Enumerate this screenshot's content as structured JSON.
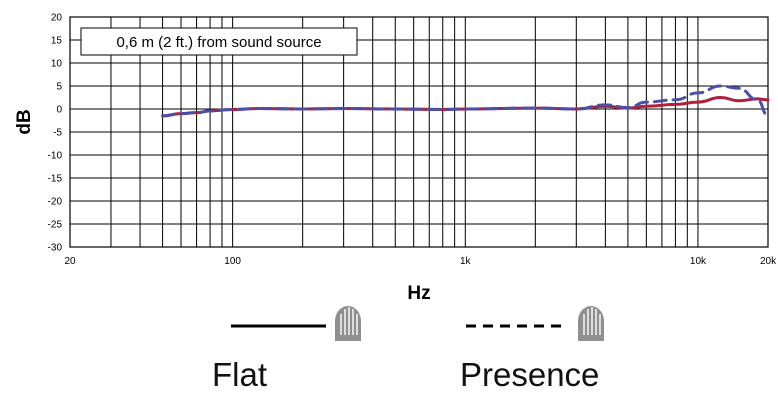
{
  "chart_data": {
    "type": "line",
    "annotation": "0,6 m (2 ft.) from sound source",
    "xlabel": "Hz",
    "ylabel": "dB",
    "xscale": "log",
    "xlim": [
      20,
      20000
    ],
    "ylim": [
      -30,
      20
    ],
    "grid": true,
    "x_tick_labels": [
      {
        "value": 20,
        "label": "20"
      },
      {
        "value": 100,
        "label": "100"
      },
      {
        "value": 1000,
        "label": "1k"
      },
      {
        "value": 10000,
        "label": "10k"
      },
      {
        "value": 20000,
        "label": "20k"
      }
    ],
    "y_ticks": [
      20,
      15,
      10,
      5,
      0,
      -5,
      -10,
      -15,
      -20,
      -25,
      -30
    ],
    "series": [
      {
        "name": "Flat",
        "style": "solid",
        "color": "#b0203a",
        "x": [
          50,
          60,
          70,
          80,
          100,
          130,
          200,
          300,
          500,
          800,
          1000,
          2000,
          3000,
          4000,
          5000,
          6000,
          8000,
          10000,
          12500,
          15000,
          18000,
          20000
        ],
        "y": [
          -1.5,
          -1.0,
          -0.8,
          -0.4,
          -0.1,
          0.1,
          0.0,
          0.1,
          0.0,
          -0.1,
          0.0,
          0.2,
          0.0,
          0.6,
          0.2,
          0.6,
          1.0,
          1.5,
          2.5,
          1.8,
          2.2,
          2.0
        ]
      },
      {
        "name": "Presence",
        "style": "dashed",
        "color": "#4a4fa8",
        "x": [
          50,
          60,
          70,
          80,
          100,
          130,
          200,
          300,
          500,
          800,
          1000,
          2000,
          3000,
          4000,
          5000,
          6000,
          8000,
          10000,
          12500,
          15000,
          18000,
          20000
        ],
        "y": [
          -1.5,
          -1.0,
          -0.8,
          -0.4,
          -0.1,
          0.1,
          0.0,
          0.1,
          0.0,
          -0.1,
          0.0,
          0.2,
          0.0,
          0.9,
          0.3,
          1.5,
          2.0,
          3.5,
          5.0,
          4.5,
          2.0,
          -1.5
        ]
      }
    ],
    "legend": [
      {
        "label": "Flat",
        "line_style": "solid",
        "icon": "microphone-grille-icon"
      },
      {
        "label": "Presence",
        "line_style": "dashed",
        "icon": "microphone-grille-icon"
      }
    ]
  }
}
